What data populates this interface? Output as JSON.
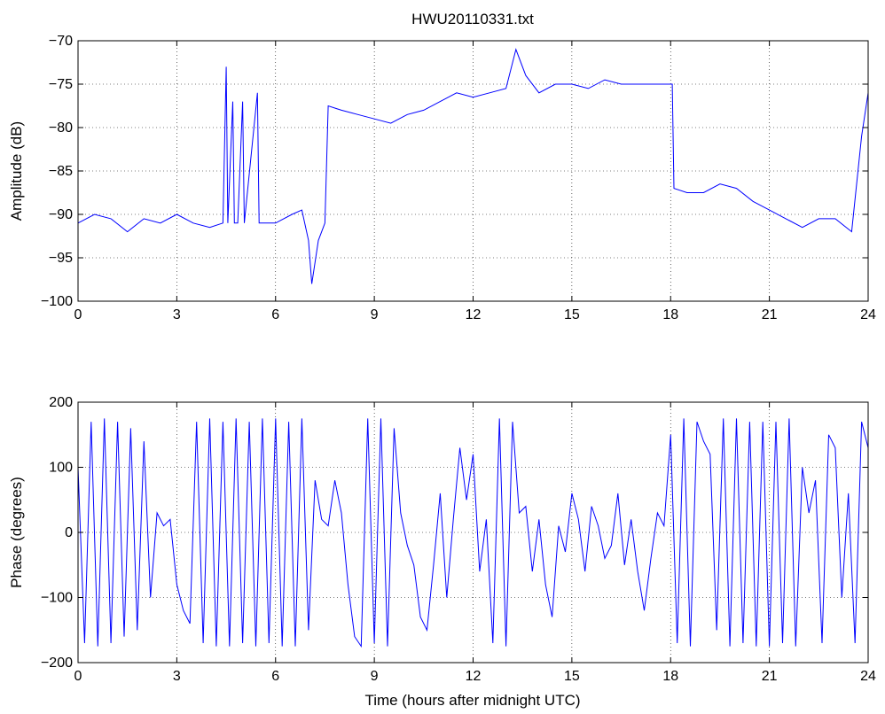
{
  "chart_data": [
    {
      "type": "line",
      "title": "HWU20110331.txt",
      "xlabel": "",
      "ylabel": "Amplitude (dB)",
      "xlim": [
        0,
        24
      ],
      "ylim": [
        -100,
        -70
      ],
      "xticks": [
        0,
        3,
        6,
        9,
        12,
        15,
        18,
        21,
        24
      ],
      "yticks": [
        -70,
        -75,
        -80,
        -85,
        -90,
        -95,
        -100
      ],
      "xtick_labels": [
        "0",
        "3",
        "6",
        "9",
        "12",
        "15",
        "18",
        "21",
        "24"
      ],
      "ytick_labels": [
        "−70",
        "−75",
        "−80",
        "−85",
        "−90",
        "−95",
        "−100"
      ],
      "grid": true,
      "color": "#0000ff",
      "series": [
        {
          "x": [
            0,
            0.5,
            1.0,
            1.5,
            2.0,
            2.5,
            3.0,
            3.5,
            4.0,
            4.4,
            4.5,
            4.55,
            4.7,
            4.75,
            4.85,
            5.0,
            5.05,
            5.45,
            5.5,
            5.55,
            6.0,
            6.5,
            6.8,
            7.0,
            7.1,
            7.3,
            7.5,
            7.6,
            8.0,
            8.5,
            9.0,
            9.5,
            10.0,
            10.5,
            11.0,
            11.5,
            12.0,
            12.5,
            13.0,
            13.3,
            13.6,
            14.0,
            14.5,
            15.0,
            15.5,
            16.0,
            16.5,
            17.0,
            17.5,
            18.05,
            18.1,
            18.5,
            19.0,
            19.5,
            20.0,
            20.5,
            21.0,
            21.5,
            22.0,
            22.5,
            23.0,
            23.5,
            23.8,
            24.0
          ],
          "y": [
            -91,
            -90,
            -90.5,
            -92,
            -90.5,
            -91,
            -90,
            -91,
            -91.5,
            -91,
            -73,
            -91,
            -77,
            -91,
            -91,
            -77,
            -91,
            -76,
            -91,
            -91,
            -91,
            -90,
            -89.5,
            -93,
            -98,
            -93,
            -91,
            -77.5,
            -78,
            -78.5,
            -79,
            -79.5,
            -78.5,
            -78,
            -77,
            -76,
            -76.5,
            -76,
            -75.5,
            -71,
            -74,
            -76,
            -75,
            -75,
            -75.5,
            -74.5,
            -75,
            -75,
            -75,
            -75,
            -87,
            -87.5,
            -87.5,
            -86.5,
            -87,
            -88.5,
            -89.5,
            -90.5,
            -91.5,
            -90.5,
            -90.5,
            -92,
            -81,
            -76
          ]
        }
      ]
    },
    {
      "type": "line",
      "title": "",
      "xlabel": "Time (hours after midnight UTC)",
      "ylabel": "Phase (degrees)",
      "xlim": [
        0,
        24
      ],
      "ylim": [
        -200,
        200
      ],
      "xticks": [
        0,
        3,
        6,
        9,
        12,
        15,
        18,
        21,
        24
      ],
      "yticks": [
        200,
        100,
        0,
        -100,
        -200
      ],
      "xtick_labels": [
        "0",
        "3",
        "6",
        "9",
        "12",
        "15",
        "18",
        "21",
        "24"
      ],
      "ytick_labels": [
        "200",
        "100",
        "0",
        "−100",
        "−200"
      ],
      "grid": true,
      "color": "#0000ff",
      "series": [
        {
          "x": [
            0,
            0.2,
            0.4,
            0.6,
            0.8,
            1.0,
            1.2,
            1.4,
            1.6,
            1.8,
            2.0,
            2.2,
            2.4,
            2.6,
            2.8,
            3.0,
            3.2,
            3.4,
            3.6,
            3.8,
            4.0,
            4.2,
            4.4,
            4.6,
            4.8,
            5.0,
            5.2,
            5.4,
            5.6,
            5.8,
            6.0,
            6.2,
            6.4,
            6.6,
            6.8,
            7.0,
            7.2,
            7.4,
            7.6,
            7.8,
            8.0,
            8.2,
            8.4,
            8.6,
            8.8,
            9.0,
            9.2,
            9.4,
            9.6,
            9.8,
            10.0,
            10.2,
            10.4,
            10.6,
            10.8,
            11.0,
            11.2,
            11.4,
            11.6,
            11.8,
            12.0,
            12.2,
            12.4,
            12.6,
            12.8,
            13.0,
            13.2,
            13.4,
            13.6,
            13.8,
            14.0,
            14.2,
            14.4,
            14.6,
            14.8,
            15.0,
            15.2,
            15.4,
            15.6,
            15.8,
            16.0,
            16.2,
            16.4,
            16.6,
            16.8,
            17.0,
            17.2,
            17.4,
            17.6,
            17.8,
            18.0,
            18.2,
            18.4,
            18.6,
            18.8,
            19.0,
            19.2,
            19.4,
            19.6,
            19.8,
            20.0,
            20.2,
            20.4,
            20.6,
            20.8,
            21.0,
            21.2,
            21.4,
            21.6,
            21.8,
            22.0,
            22.2,
            22.4,
            22.6,
            22.8,
            23.0,
            23.2,
            23.4,
            23.6,
            23.8,
            24.0
          ],
          "y": [
            100,
            -170,
            170,
            -175,
            175,
            -170,
            170,
            -160,
            160,
            -150,
            140,
            -100,
            30,
            10,
            20,
            -80,
            -120,
            -140,
            170,
            -170,
            175,
            -175,
            170,
            -175,
            175,
            -170,
            170,
            -175,
            175,
            -170,
            175,
            -175,
            170,
            -175,
            175,
            -150,
            80,
            20,
            10,
            80,
            30,
            -80,
            -160,
            -175,
            175,
            -170,
            175,
            -175,
            160,
            30,
            -20,
            -50,
            -130,
            -150,
            -50,
            60,
            -100,
            20,
            130,
            50,
            120,
            -60,
            20,
            -170,
            175,
            -175,
            170,
            30,
            40,
            -60,
            20,
            -80,
            -130,
            10,
            -30,
            60,
            20,
            -60,
            40,
            10,
            -40,
            -20,
            60,
            -50,
            20,
            -60,
            -120,
            -40,
            30,
            10,
            150,
            -170,
            175,
            -175,
            170,
            140,
            120,
            -150,
            175,
            -175,
            175,
            -170,
            170,
            -175,
            170,
            -175,
            170,
            -170,
            175,
            -175,
            100,
            30,
            80,
            -170,
            150,
            130,
            -100,
            60,
            -170,
            170,
            130
          ]
        }
      ]
    }
  ]
}
